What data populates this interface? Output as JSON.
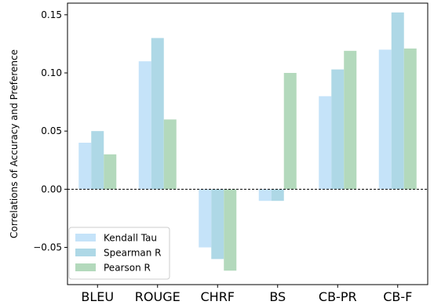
{
  "chart_data": {
    "type": "bar",
    "title": "",
    "xlabel": "",
    "ylabel": "Correlations of Accuracy and Preference",
    "categories": [
      "BLEU",
      "ROUGE",
      "CHRF",
      "BS",
      "CB-PR",
      "CB-F"
    ],
    "series": [
      {
        "name": "Kendall Tau",
        "color": "#c5e3f9",
        "values": [
          0.04,
          0.11,
          -0.05,
          -0.01,
          0.08,
          0.12
        ]
      },
      {
        "name": "Spearman R",
        "color": "#aed8e6",
        "values": [
          0.05,
          0.13,
          -0.06,
          -0.01,
          0.103,
          0.152
        ]
      },
      {
        "name": "Pearson R",
        "color": "#b3d9bc",
        "values": [
          0.03,
          0.06,
          -0.07,
          0.1,
          0.119,
          0.121
        ]
      }
    ],
    "ylim": [
      -0.082,
      0.16
    ],
    "yticks": [
      -0.05,
      0.0,
      0.05,
      0.1,
      0.15
    ],
    "ytick_labels": [
      "−0.05",
      "0.00",
      "0.05",
      "0.10",
      "0.15"
    ],
    "zero_line": {
      "value": 0,
      "style": "dashed"
    },
    "grid": false,
    "legend_position": "lower-left"
  }
}
